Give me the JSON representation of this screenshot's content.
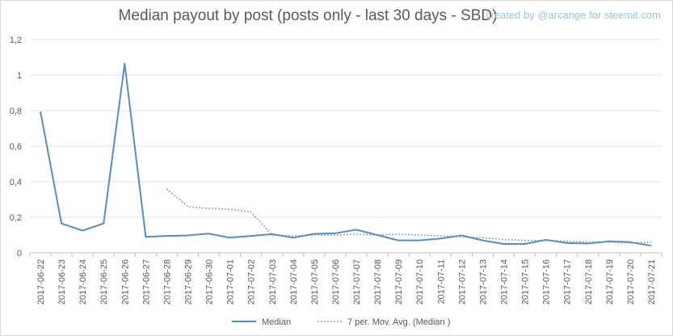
{
  "chart_data": {
    "type": "line",
    "title": "Median payout by post (posts only - last 30 days - SBD)",
    "watermark": "created by @arcange for steemit.com",
    "x": [
      "2017-06-22",
      "2017-06-23",
      "2017-06-24",
      "2017-06-25",
      "2017-06-26",
      "2017-06-27",
      "2017-06-28",
      "2017-06-29",
      "2017-06-30",
      "2017-07-01",
      "2017-07-02",
      "2017-07-03",
      "2017-07-04",
      "2017-07-05",
      "2017-07-06",
      "2017-07-07",
      "2017-07-08",
      "2017-07-09",
      "2017-07-10",
      "2017-07-11",
      "2017-07-12",
      "2017-07-13",
      "2017-07-14",
      "2017-07-15",
      "2017-07-16",
      "2017-07-17",
      "2017-07-18",
      "2017-07-19",
      "2017-07-20",
      "2017-07-21"
    ],
    "yticks": [
      "0",
      "0,2",
      "0,4",
      "0,6",
      "0,8",
      "1",
      "1,2"
    ],
    "ylim": [
      0,
      1.2
    ],
    "grid": true,
    "legend_position": "bottom",
    "series": [
      {
        "name": "Median",
        "style": "solid",
        "color": "#5b8db8",
        "values": [
          0.795,
          0.165,
          0.125,
          0.165,
          1.065,
          0.09,
          0.095,
          0.098,
          0.108,
          0.085,
          0.095,
          0.105,
          0.085,
          0.107,
          0.11,
          0.13,
          0.1,
          0.07,
          0.07,
          0.08,
          0.098,
          0.07,
          0.05,
          0.05,
          0.073,
          0.055,
          0.052,
          0.065,
          0.06,
          0.04
        ]
      },
      {
        "name": "7 per. Mov. Avg. (Median )",
        "style": "dotted",
        "color": "#5b8db8",
        "values": [
          null,
          null,
          null,
          null,
          null,
          null,
          0.36,
          0.26,
          0.25,
          0.245,
          0.23,
          0.1,
          0.095,
          0.1,
          0.1,
          0.105,
          0.1,
          0.105,
          0.1,
          0.095,
          0.09,
          0.085,
          0.075,
          0.07,
          0.07,
          0.065,
          0.06,
          0.06,
          0.055,
          0.06
        ]
      }
    ]
  }
}
